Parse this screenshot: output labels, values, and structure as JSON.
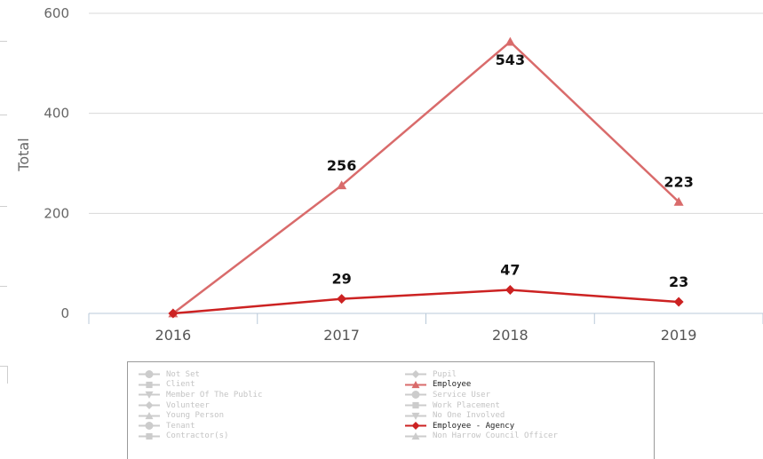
{
  "chart_data": {
    "type": "line",
    "ylabel": "Total",
    "categories": [
      "2016",
      "2017",
      "2018",
      "2019"
    ],
    "ylim": [
      0,
      600
    ],
    "yticks": [
      0,
      200,
      400,
      600
    ],
    "grid": true,
    "series": [
      {
        "name": "Employee",
        "values": [
          0,
          256,
          543,
          223
        ],
        "color": "#d96b6b",
        "marker": "triangle"
      },
      {
        "name": "Employee - Agency",
        "values": [
          0,
          29,
          47,
          23
        ],
        "color": "#cc2222",
        "marker": "diamond"
      }
    ],
    "legend_placement": "bottom",
    "legend": {
      "left": [
        {
          "label": "Not Set",
          "marker": "circle",
          "active": false
        },
        {
          "label": "Client",
          "marker": "square",
          "active": false
        },
        {
          "label": "Member Of The Public",
          "marker": "triangle-down",
          "active": false
        },
        {
          "label": "Volunteer",
          "marker": "diamond",
          "active": false
        },
        {
          "label": "Young Person",
          "marker": "triangle",
          "active": false
        },
        {
          "label": "Tenant",
          "marker": "circle",
          "active": false
        },
        {
          "label": "Contractor(s)",
          "marker": "square",
          "active": false
        }
      ],
      "right": [
        {
          "label": "Pupil",
          "marker": "diamond",
          "active": false
        },
        {
          "label": "Employee",
          "marker": "triangle",
          "active": true,
          "color": "#d96b6b"
        },
        {
          "label": "Service User",
          "marker": "circle",
          "active": false
        },
        {
          "label": "Work Placement",
          "marker": "square",
          "active": false
        },
        {
          "label": "No One Involved",
          "marker": "triangle-down",
          "active": false
        },
        {
          "label": "Employee - Agency",
          "marker": "diamond",
          "active": true,
          "color": "#cc2222"
        },
        {
          "label": "Non Harrow Council Officer",
          "marker": "triangle",
          "active": false
        }
      ]
    }
  }
}
